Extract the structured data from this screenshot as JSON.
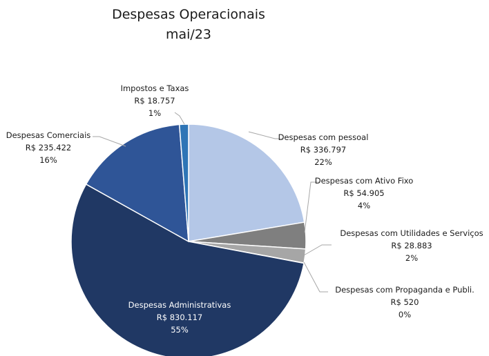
{
  "chart_data": {
    "type": "pie",
    "title": "Despesas Operacionais",
    "subtitle": "mai/23",
    "slices": [
      {
        "label": "Despesas com pessoal",
        "value": 336797,
        "value_text": "R$ 336.797",
        "percent_text": "22%",
        "color": "#b4c7e7"
      },
      {
        "label": "Despesas com Ativo Fixo",
        "value": 54905,
        "value_text": "R$ 54.905",
        "percent_text": "4%",
        "color": "#7f7f7f"
      },
      {
        "label": "Despesas com Utilidades e Serviços",
        "value": 28883,
        "value_text": "R$ 28.883",
        "percent_text": "2%",
        "color": "#a6a6a6"
      },
      {
        "label": "Despesas com Propaganda e Publi.",
        "value": 520,
        "value_text": "R$ 520",
        "percent_text": "0%",
        "color": "#d9d9d9"
      },
      {
        "label": "Despesas Administrativas",
        "value": 830117,
        "value_text": "R$ 830.117",
        "percent_text": "55%",
        "color": "#203864"
      },
      {
        "label": "Despesas Comerciais",
        "value": 235422,
        "value_text": "R$ 235.422",
        "percent_text": "16%",
        "color": "#2f5597"
      },
      {
        "label": "Impostos e Taxas",
        "value": 18757,
        "value_text": "R$ 18.757",
        "percent_text": "1%",
        "color": "#2e75b6"
      }
    ]
  }
}
